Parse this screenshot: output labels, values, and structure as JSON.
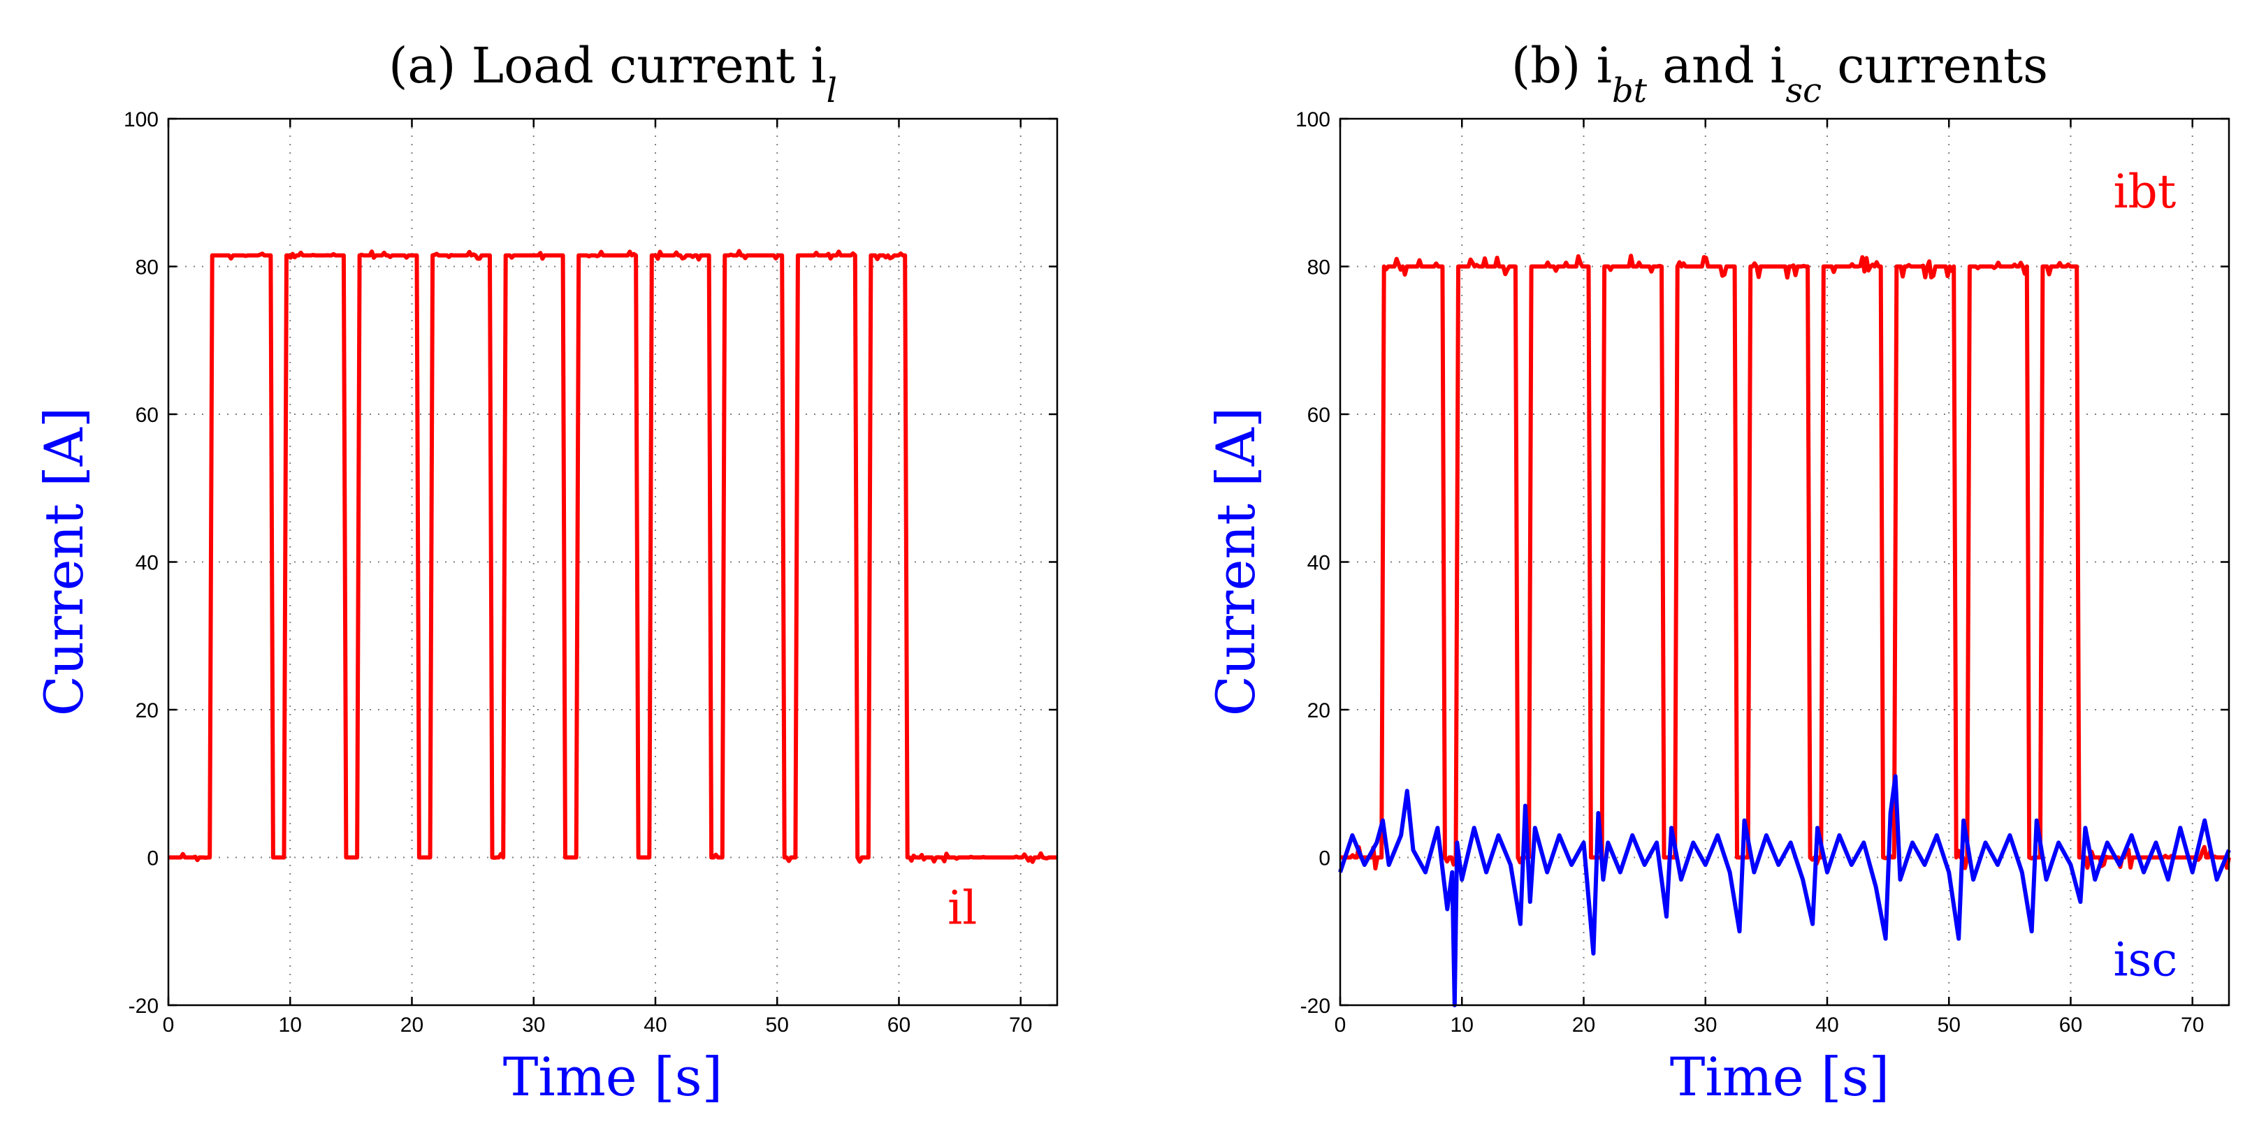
{
  "colors": {
    "red": "#ff0000",
    "blue": "#0000ff",
    "axis": "#000000",
    "grid": "#7f7f7f"
  },
  "chart_data": [
    {
      "type": "line",
      "title": "(a) Load current i",
      "title_sub": "l",
      "xlabel": "Time [s]",
      "ylabel": "Current [A]",
      "xlim": [
        0,
        73
      ],
      "ylim": [
        -20,
        100
      ],
      "xticks": [
        0,
        10,
        20,
        30,
        40,
        50,
        60,
        70
      ],
      "yticks": [
        -20,
        0,
        20,
        40,
        60,
        80,
        100
      ],
      "grid": true,
      "annotations": [
        {
          "text": "il",
          "color": "#ff0000",
          "x": 64,
          "y": -9
        }
      ],
      "series": [
        {
          "name": "il",
          "color": "#ff0000",
          "noise": 0.6,
          "x": [
            0,
            3.4,
            3.6,
            8.4,
            8.6,
            9.5,
            9.7,
            14.4,
            14.6,
            15.5,
            15.7,
            20.4,
            20.6,
            21.5,
            21.7,
            26.4,
            26.6,
            27.5,
            27.7,
            32.4,
            32.6,
            33.5,
            33.7,
            38.4,
            38.6,
            39.5,
            39.7,
            44.4,
            44.6,
            45.5,
            45.7,
            50.4,
            50.6,
            51.5,
            51.7,
            56.4,
            56.6,
            57.5,
            57.7,
            60.5,
            60.7,
            73
          ],
          "y": [
            0,
            0,
            81.5,
            81.5,
            0,
            0,
            81.5,
            81.5,
            0,
            0,
            81.5,
            81.5,
            0,
            0,
            81.5,
            81.5,
            0,
            0,
            81.5,
            81.5,
            0,
            0,
            81.5,
            81.5,
            0,
            0,
            81.5,
            81.5,
            0,
            0,
            81.5,
            81.5,
            0,
            0,
            81.5,
            81.5,
            0,
            0,
            81.5,
            81.5,
            0,
            0
          ]
        }
      ]
    },
    {
      "type": "line",
      "title": "(b) i",
      "title_sub1": "bt",
      "title_mid": " and i",
      "title_sub2": "sc",
      "title_end": " currents",
      "xlabel": "Time [s]",
      "ylabel": "Current [A]",
      "xlim": [
        0,
        73
      ],
      "ylim": [
        -20,
        100
      ],
      "xticks": [
        0,
        10,
        20,
        30,
        40,
        50,
        60,
        70
      ],
      "yticks": [
        -20,
        0,
        20,
        40,
        60,
        80,
        100
      ],
      "grid": true,
      "annotations": [
        {
          "text": "ibt",
          "color": "#ff0000",
          "x": 63.5,
          "y": 88
        },
        {
          "text": "isc",
          "color": "#0000ff",
          "x": 63.5,
          "y": -16
        }
      ],
      "series": [
        {
          "name": "ibt",
          "color": "#ff0000",
          "noise": 1.5,
          "x": [
            0,
            3.4,
            3.6,
            8.4,
            8.6,
            9.5,
            9.7,
            14.4,
            14.6,
            15.5,
            15.7,
            20.4,
            20.6,
            21.5,
            21.7,
            26.4,
            26.6,
            27.5,
            27.7,
            32.4,
            32.6,
            33.5,
            33.7,
            38.4,
            38.6,
            39.5,
            39.7,
            44.4,
            44.6,
            45.5,
            45.7,
            50.4,
            50.6,
            51.5,
            51.7,
            56.4,
            56.6,
            57.5,
            57.7,
            60.5,
            60.7,
            73
          ],
          "y": [
            0,
            0,
            80,
            80,
            0,
            0,
            80,
            80,
            0,
            0,
            80,
            80,
            0,
            0,
            80,
            80,
            0,
            0,
            80,
            80,
            0,
            0,
            80,
            80,
            0,
            0,
            80,
            80,
            0,
            0,
            80,
            80,
            0,
            0,
            80,
            80,
            0,
            0,
            80,
            80,
            0,
            0
          ]
        },
        {
          "name": "isc",
          "color": "#0000ff",
          "x": [
            0,
            1,
            2,
            3,
            3.5,
            4,
            5,
            5.5,
            6,
            7,
            8,
            8.8,
            9.2,
            9.4,
            9.6,
            10,
            11,
            12,
            13,
            14,
            14.8,
            15.2,
            15.6,
            16,
            17,
            18,
            19,
            20,
            20.8,
            21.2,
            21.6,
            22,
            23,
            24,
            25,
            26,
            26.8,
            27.2,
            28,
            29,
            30,
            31,
            32,
            32.8,
            33.2,
            34,
            35,
            36,
            37,
            38,
            38.8,
            39.2,
            40,
            41,
            42,
            43,
            44,
            44.8,
            45.2,
            45.6,
            46,
            47,
            48,
            49,
            50,
            50.8,
            51.2,
            52,
            53,
            54,
            55,
            56,
            56.8,
            57.2,
            58,
            59,
            60,
            60.8,
            61.2,
            62,
            63,
            64,
            65,
            66,
            67,
            68,
            69,
            70,
            71,
            72,
            73
          ],
          "y": [
            -2,
            3,
            -1,
            2,
            5,
            -1,
            3,
            9,
            1,
            -2,
            4,
            -7,
            -2,
            -20,
            2,
            -3,
            4,
            -2,
            3,
            -1,
            -9,
            7,
            -6,
            4,
            -2,
            3,
            -1,
            2,
            -13,
            6,
            -3,
            2,
            -2,
            3,
            -1,
            2,
            -8,
            4,
            -3,
            2,
            -1,
            3,
            -2,
            -10,
            5,
            -2,
            3,
            -1,
            2,
            -3,
            -9,
            4,
            -2,
            3,
            -1,
            2,
            -4,
            -11,
            6,
            11,
            -3,
            2,
            -1,
            3,
            -2,
            -11,
            5,
            -3,
            2,
            -1,
            3,
            -2,
            -10,
            5,
            -3,
            2,
            -1,
            -6,
            4,
            -3,
            2,
            -1,
            3,
            -2,
            2,
            -3,
            4,
            -2,
            5,
            -3,
            1
          ]
        }
      ]
    }
  ]
}
